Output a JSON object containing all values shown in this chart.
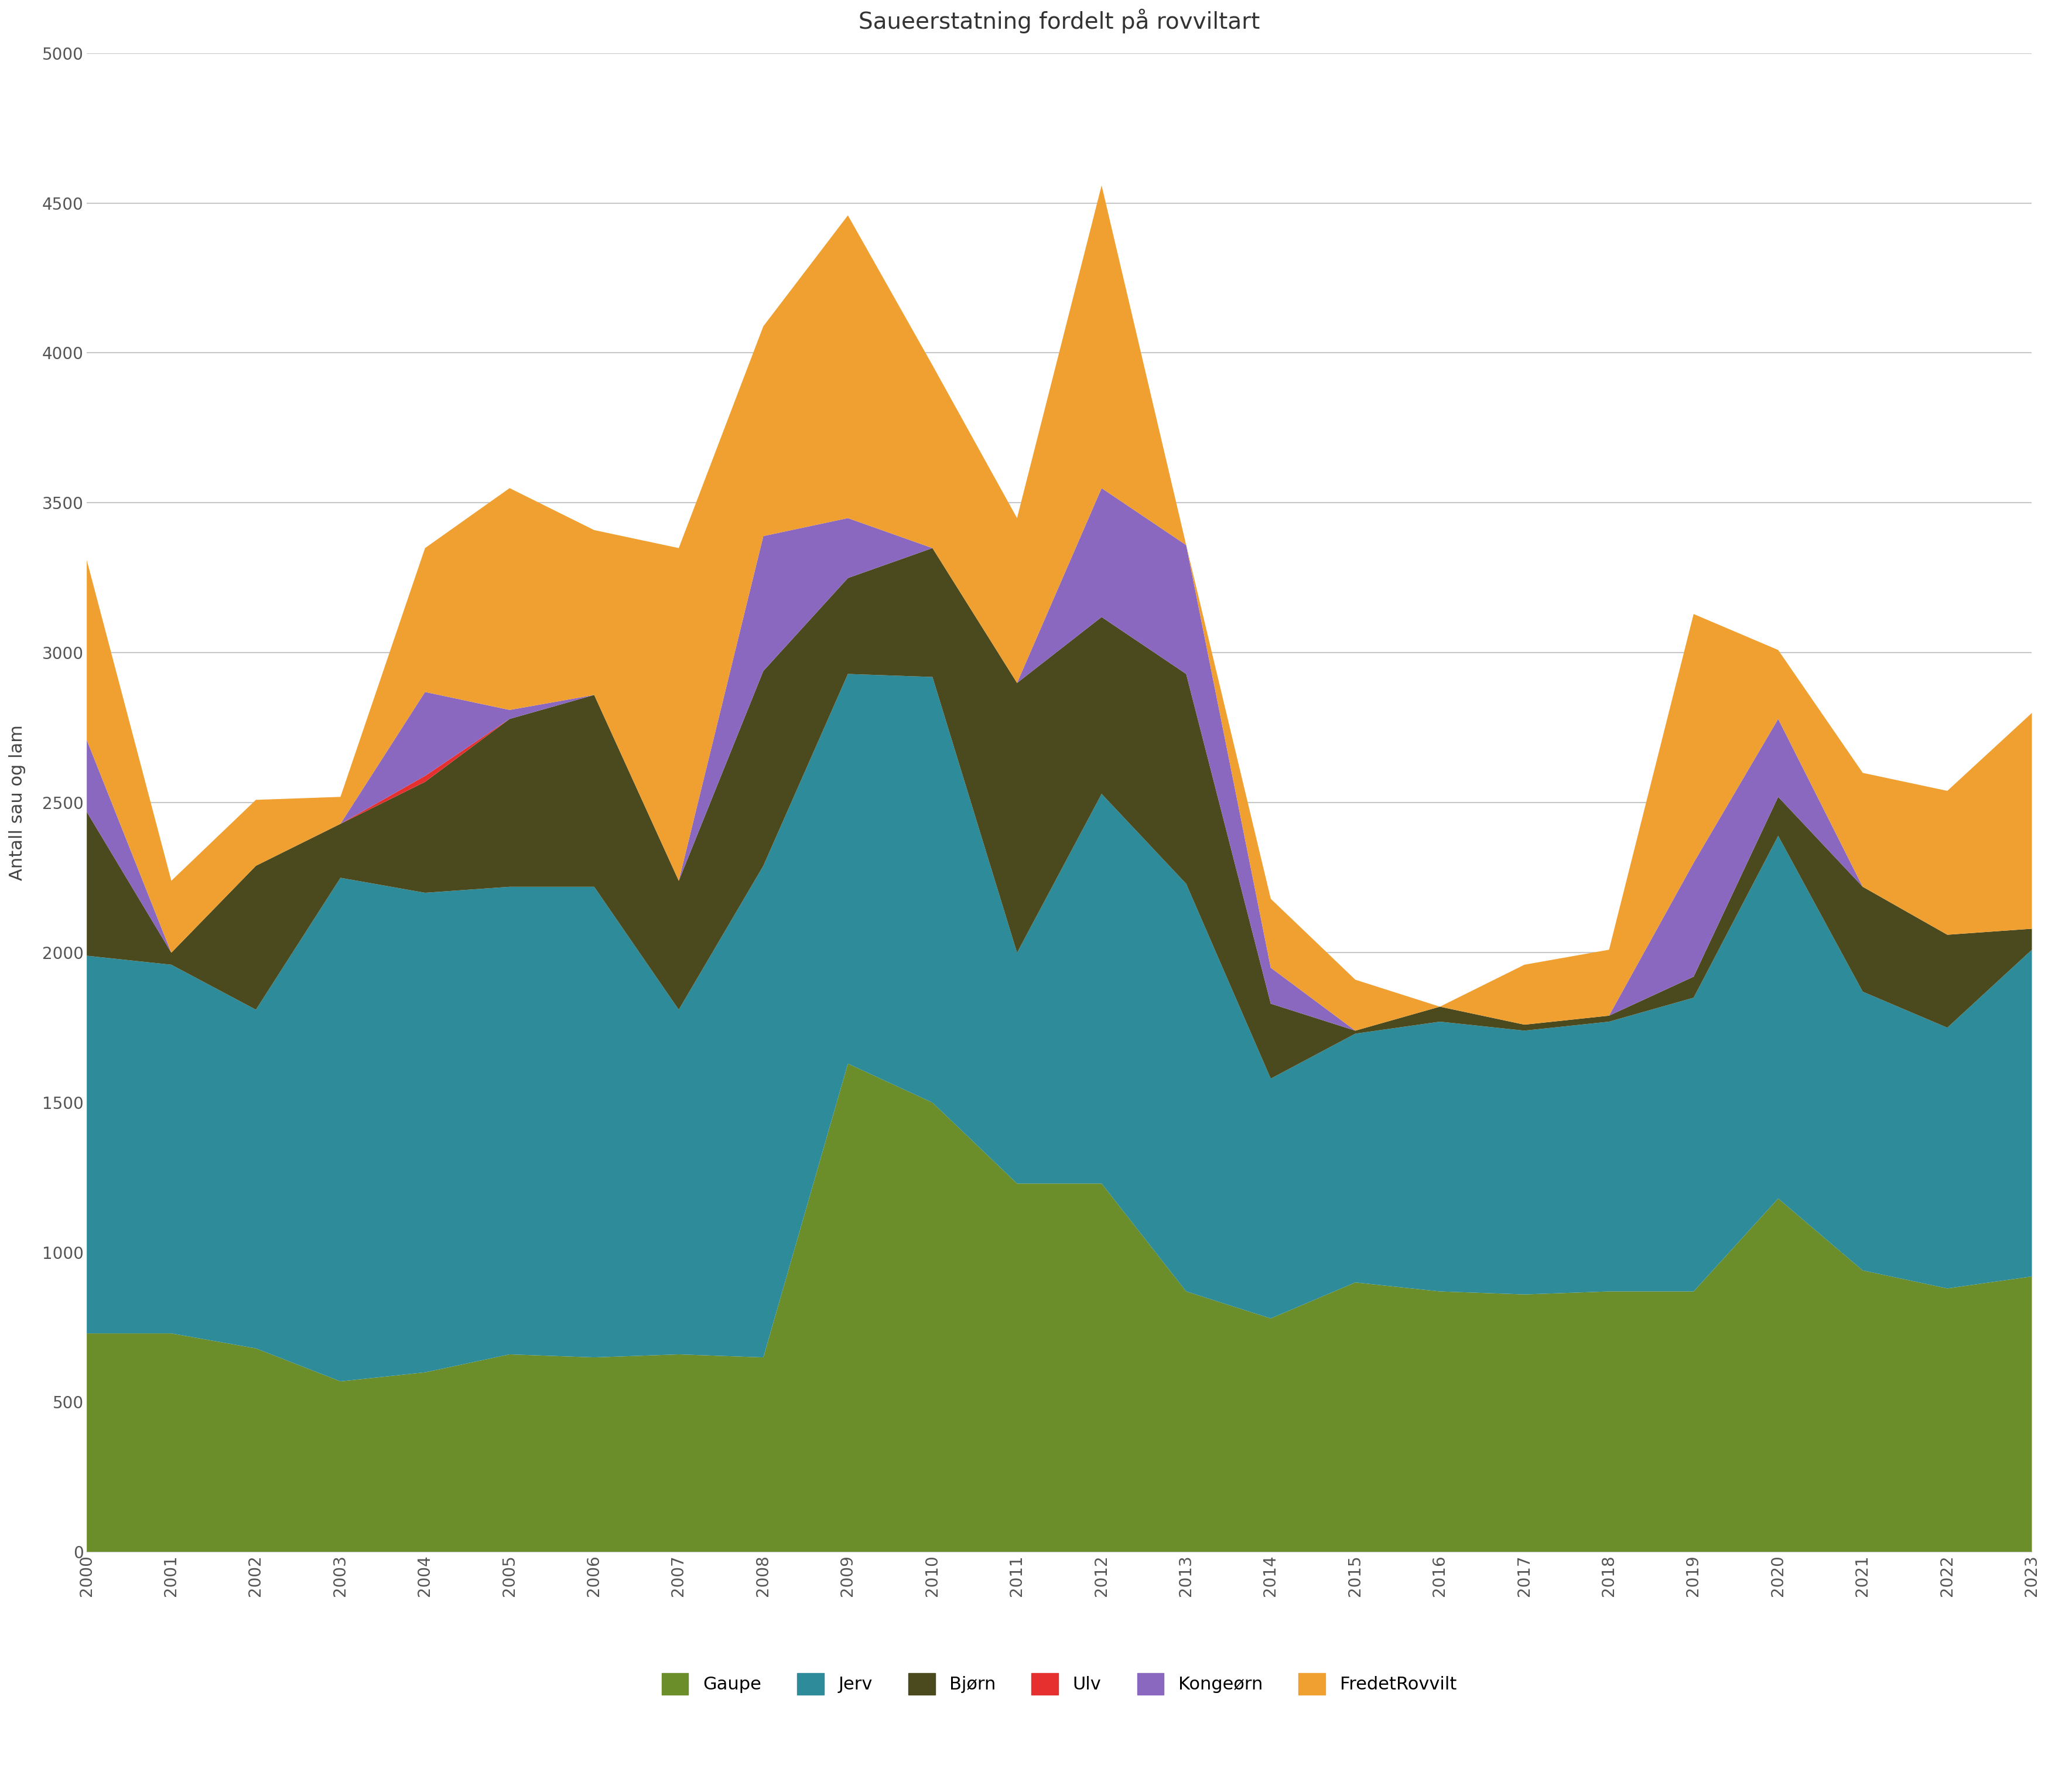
{
  "title": "Saueerstatning fordelt på rovviltart",
  "ylabel": "Antall sau og lam",
  "years": [
    2000,
    2001,
    2002,
    2003,
    2004,
    2005,
    2006,
    2007,
    2008,
    2009,
    2010,
    2011,
    2012,
    2013,
    2014,
    2015,
    2016,
    2017,
    2018,
    2019,
    2020,
    2021,
    2022,
    2023
  ],
  "series": {
    "Gaupe": [
      730,
      730,
      680,
      570,
      600,
      660,
      650,
      660,
      650,
      1630,
      1500,
      1230,
      1230,
      870,
      780,
      900,
      870,
      860,
      870,
      870,
      1180,
      940,
      880,
      920
    ],
    "Jerv": [
      1260,
      1230,
      1130,
      1680,
      1600,
      1560,
      1570,
      1150,
      1640,
      1300,
      1420,
      770,
      1300,
      1360,
      800,
      830,
      900,
      880,
      900,
      980,
      1210,
      930,
      870,
      1090
    ],
    "Bjørn": [
      480,
      40,
      480,
      180,
      370,
      560,
      640,
      430,
      650,
      320,
      430,
      900,
      590,
      700,
      250,
      10,
      50,
      20,
      20,
      70,
      130,
      350,
      310,
      70
    ],
    "Ulv": [
      0,
      0,
      0,
      0,
      20,
      0,
      0,
      0,
      0,
      0,
      0,
      0,
      0,
      0,
      0,
      0,
      0,
      0,
      0,
      0,
      0,
      0,
      0,
      0
    ],
    "Kongeørn": [
      240,
      0,
      0,
      0,
      280,
      30,
      0,
      0,
      450,
      200,
      0,
      0,
      430,
      430,
      120,
      0,
      0,
      0,
      0,
      380,
      260,
      0,
      0,
      0
    ],
    "FredetRovvilt": [
      600,
      240,
      220,
      90,
      480,
      740,
      550,
      1110,
      700,
      1010,
      610,
      550,
      1010,
      0,
      230,
      170,
      0,
      200,
      220,
      830,
      230,
      380,
      480,
      720
    ]
  },
  "colors": {
    "Gaupe": "#6b8e2a",
    "Jerv": "#2e8b9a",
    "Bjørn": "#4a4a1e",
    "Ulv": "#e63030",
    "Kongeørn": "#8b68c0",
    "FredetRovvilt": "#f0a030"
  },
  "ylim": [
    0,
    5000
  ],
  "yticks": [
    0,
    500,
    1000,
    1500,
    2000,
    2500,
    3000,
    3500,
    4000,
    4500,
    5000
  ],
  "background_color": "#ffffff",
  "grid_color": "#c8c8c8",
  "title_fontsize": 28,
  "label_fontsize": 22,
  "tick_fontsize": 20,
  "legend_fontsize": 22
}
